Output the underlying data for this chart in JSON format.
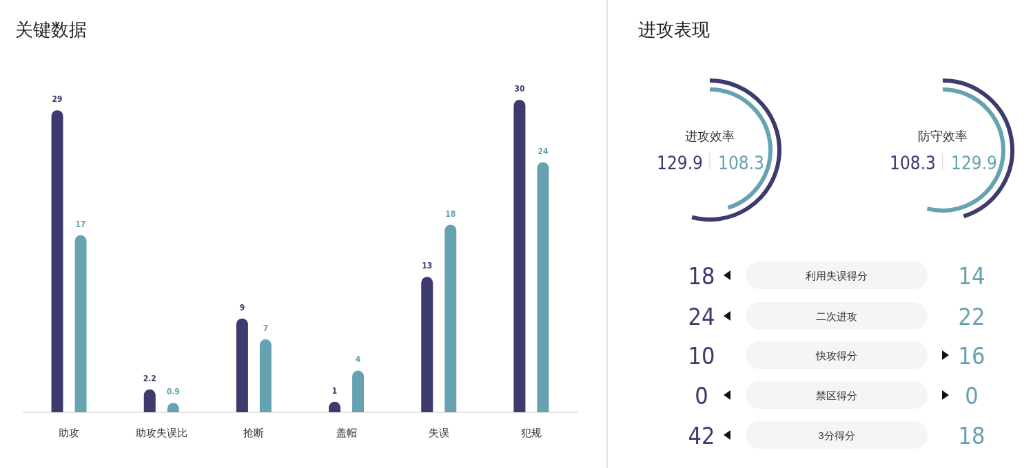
{
  "chart_data": [
    {
      "type": "bar",
      "title": "关键数据",
      "categories": [
        "助攻",
        "助攻失误比",
        "抢断",
        "盖帽",
        "失误",
        "犯规"
      ],
      "series": [
        {
          "color": "#3d3b6e",
          "values": [
            29,
            2.2,
            9,
            1,
            13,
            30
          ]
        },
        {
          "color": "#67a2b0",
          "values": [
            17,
            0.9,
            7,
            4,
            18,
            24
          ]
        }
      ],
      "data_labels": true
    },
    {
      "type": "other",
      "title": "进攻表现",
      "categories": [
        "进攻效率",
        "防守效率"
      ],
      "series": [
        {
          "color": "#3d3b6e",
          "values": [
            129.9,
            108.3
          ]
        },
        {
          "color": "#67a2b0",
          "values": [
            108.3,
            129.9
          ]
        }
      ],
      "data_labels": true
    },
    {
      "type": "other",
      "categories": [
        "利用失误得分",
        "二次进攻",
        "快攻得分",
        "禁区得分",
        "3分得分"
      ],
      "series": [
        {
          "color": "#3d3b6e",
          "values": [
            18,
            24,
            10,
            0,
            42
          ]
        },
        {
          "color": "#67a2b0",
          "values": [
            14,
            22,
            16,
            0,
            18
          ]
        }
      ],
      "data_labels": true
    }
  ]
}
